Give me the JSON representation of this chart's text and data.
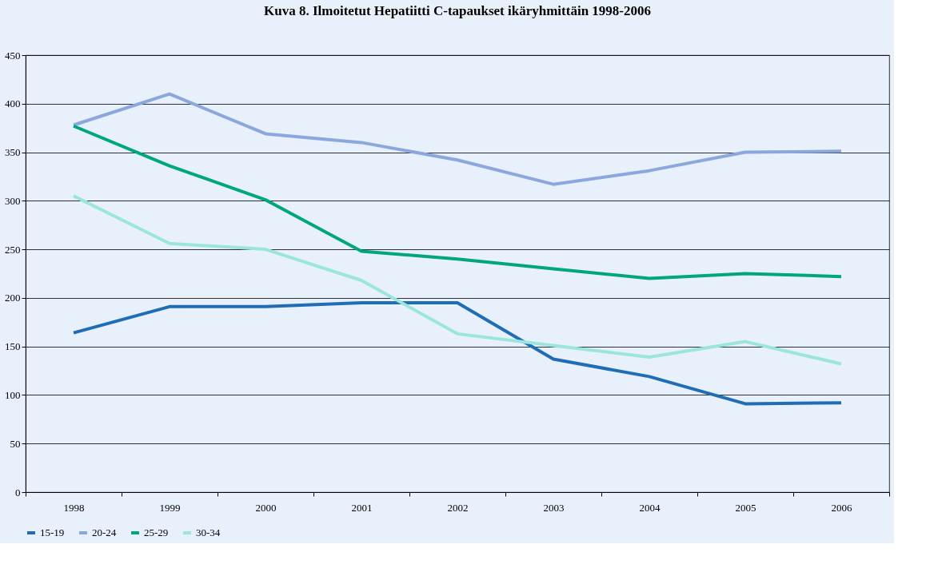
{
  "chart_data": {
    "type": "line",
    "title": "Kuva 8. Ilmoitetut Hepatiitti C-tapaukset ikäryhmittäin 1998-2006",
    "categories": [
      "1998",
      "1999",
      "2000",
      "2001",
      "2002",
      "2003",
      "2004",
      "2005",
      "2006"
    ],
    "series": [
      {
        "name": "15-19",
        "color": "#1f6db5",
        "values": [
          164,
          191,
          191,
          195,
          195,
          137,
          119,
          91,
          92
        ]
      },
      {
        "name": "20-24",
        "color": "#8aa8dc",
        "values": [
          378,
          410,
          369,
          360,
          342,
          317,
          331,
          350,
          351
        ]
      },
      {
        "name": "25-29",
        "color": "#00a67c",
        "values": [
          377,
          336,
          301,
          248,
          240,
          230,
          220,
          225,
          222
        ]
      },
      {
        "name": "30-34",
        "color": "#9be6dc",
        "values": [
          305,
          256,
          250,
          218,
          163,
          151,
          139,
          155,
          132
        ]
      }
    ],
    "ylim": [
      0,
      450
    ],
    "yticks": [
      0,
      50,
      100,
      150,
      200,
      250,
      300,
      350,
      400,
      450
    ],
    "grid": "y",
    "legend": "bottom",
    "marker": "none",
    "line_style": "solid"
  }
}
